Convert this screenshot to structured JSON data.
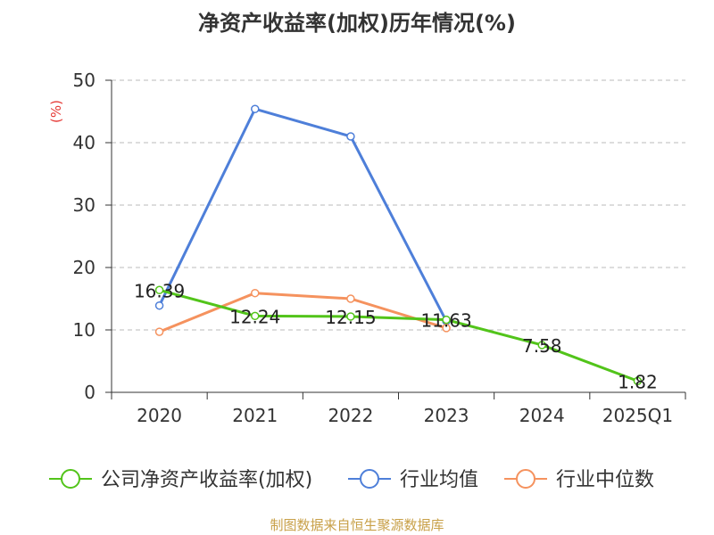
{
  "chart_data": {
    "type": "line",
    "title": "净资产收益率(加权)历年情况(%)",
    "ylabel": "(%)",
    "xlabel": "",
    "categories": [
      "2020",
      "2021",
      "2022",
      "2023",
      "2024",
      "2025Q1"
    ],
    "ylim": [
      0,
      50
    ],
    "yticks": [
      0,
      10,
      20,
      30,
      40,
      50
    ],
    "grid": true,
    "legend_position": "bottom",
    "series": [
      {
        "name": "公司净资产收益率(加权)",
        "color": "#52c41a",
        "values": [
          16.39,
          12.24,
          12.15,
          11.63,
          7.58,
          1.82
        ],
        "labels": true
      },
      {
        "name": "行业均值",
        "color": "#4e7fd9",
        "values": [
          13.9,
          45.4,
          41.0,
          11.4,
          null,
          null
        ],
        "labels": false
      },
      {
        "name": "行业中位数",
        "color": "#f5925e",
        "values": [
          9.7,
          15.9,
          15.0,
          10.3,
          null,
          null
        ],
        "labels": false
      }
    ]
  },
  "source": "制图数据来自恒生聚源数据库",
  "colors": {
    "axis": "#333333",
    "grid": "#bbbbbb",
    "ylabel": "#e53935",
    "source": "#c8a048"
  }
}
